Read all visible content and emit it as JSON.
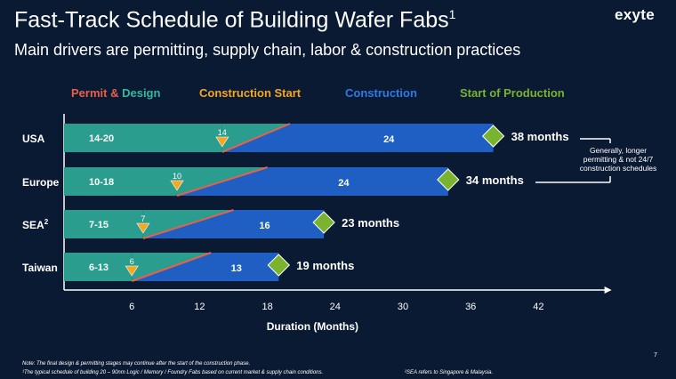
{
  "title": "Fast-Track Schedule of Building Wafer Fabs",
  "title_sup": "1",
  "subtitle": "Main drivers are permitting, supply chain, labor & construction practices",
  "logo": "exyte",
  "page_number": "7",
  "notes": {
    "note_line": "Note: The final design & permitting stages may continue after the start of the construction phase.",
    "footnote1": "¹The typical schedule of building 20 – 90nm Logic / Memory / Foundry Fabs based on current market & supply chain conditions.",
    "footnote2": "²SEA refers to Singapore & Malaysia."
  },
  "colors": {
    "background": "#0b1a33",
    "permit": "#2a9d8f",
    "construction": "#1f5fc4",
    "design_line": "#e8604a",
    "start_marker": "#f5a623",
    "production_marker": "#7ab32e",
    "legend_permit": "#e8604a",
    "legend_design": "#2fb9a3",
    "legend_start": "#f5a623",
    "legend_construction": "#2f7ae5",
    "legend_production": "#7ab32e"
  },
  "chart_data": {
    "type": "bar",
    "orientation": "horizontal",
    "stacked": true,
    "xlabel": "Duration (Months)",
    "ylabel": "",
    "xlim": [
      0,
      48
    ],
    "xticks": [
      6,
      12,
      18,
      24,
      30,
      36,
      42
    ],
    "legend": {
      "placement": "top",
      "permit_word": "Permit",
      "amp": " & ",
      "design_word": "Design",
      "construction_start": "Construction Start",
      "construction": "Construction",
      "start_of_production": "Start of Production"
    },
    "categories": [
      "USA",
      "Europe",
      "SEA",
      "Taiwan"
    ],
    "category_sup": [
      "",
      "",
      "2",
      ""
    ],
    "rows": [
      {
        "label": "USA",
        "permit_label": "14-20",
        "permit_min": 14,
        "permit_max": 20,
        "construction_start": 14,
        "start_label": "14",
        "construction": 24,
        "construction_label": "24",
        "total": 38,
        "total_label": "38 months"
      },
      {
        "label": "Europe",
        "permit_label": "10-18",
        "permit_min": 10,
        "permit_max": 18,
        "construction_start": 10,
        "start_label": "10",
        "construction": 24,
        "construction_label": "24",
        "total": 34,
        "total_label": "34 months"
      },
      {
        "label": "SEA",
        "permit_label": "7-15",
        "permit_min": 7,
        "permit_max": 15,
        "construction_start": 7,
        "start_label": "7",
        "construction": 16,
        "construction_label": "16",
        "total": 23,
        "total_label": "23 months"
      },
      {
        "label": "Taiwan",
        "permit_label": "6-13",
        "permit_min": 6,
        "permit_max": 13,
        "construction_start": 6,
        "start_label": "6",
        "construction": 13,
        "construction_label": "13",
        "total": 19,
        "total_label": "19 months"
      }
    ],
    "annotation": {
      "lines": [
        "Generally, longer",
        "permitting & not 24/7",
        "construction schedules"
      ],
      "applies_to": [
        "USA",
        "Europe"
      ]
    }
  }
}
